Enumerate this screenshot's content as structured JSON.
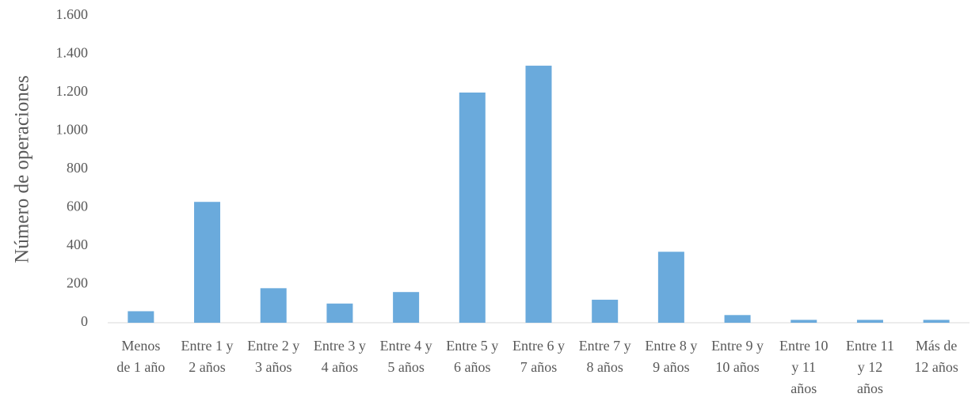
{
  "chart_data": {
    "type": "bar",
    "y_label": "Número de operaciones",
    "categories": [
      "Menos de 1 año",
      "Entre 1 y 2 años",
      "Entre 2 y 3 años",
      "Entre 3 y 4 años",
      "Entre 4 y 5 años",
      "Entre 5 y 6 años",
      "Entre 6 y 7 años",
      "Entre 7 y 8 años",
      "Entre 8 y 9 años",
      "Entre 9 y 10 años",
      "Entre 10 y 11 años",
      "Entre 11 y 12 años",
      "Más de 12 años"
    ],
    "values": [
      60,
      630,
      180,
      100,
      160,
      1200,
      1340,
      120,
      370,
      40,
      15,
      15,
      15
    ],
    "color": "#6aaadc",
    "ylim": [
      0,
      1600
    ],
    "yticks": [
      0,
      200,
      400,
      600,
      800,
      {
        "value": 1000,
        "label": "1.000"
      },
      {
        "value": 1200,
        "label": "1.200"
      },
      {
        "value": 1400,
        "label": "1.400"
      },
      {
        "value": 1600,
        "label": "1.600"
      }
    ],
    "grid": false
  }
}
